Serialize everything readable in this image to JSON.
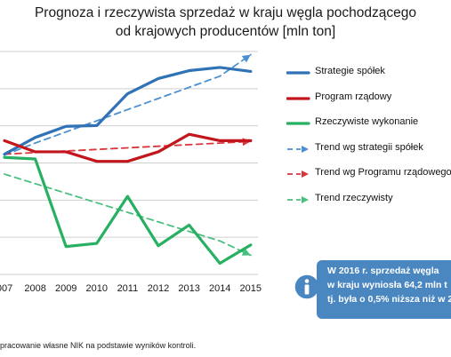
{
  "title_lines": [
    "Prognoza i rzeczywista sprzedaż w kraju węgla pochodzącego",
    "od krajowych producentów [mln ton]"
  ],
  "source_text": "pracowanie własne NIK na podstawie wyników kontroli.",
  "note": {
    "lines": [
      "W 2016 r. sprzedaż węgla",
      "w kraju wyniosła 64,2 mln t",
      "tj. była o 0,5% niższa niż w 2"
    ],
    "icon": "info-icon",
    "color": "#4a87c1"
  },
  "chart_data": {
    "type": "line",
    "title": "Prognoza i rzeczywista sprzedaż w kraju węgla pochodzącego od krajowych producentów [mln ton]",
    "x": [
      "007",
      "2008",
      "2009",
      "2010",
      "2011",
      "2012",
      "2013",
      "2014",
      "2015"
    ],
    "ylim": [
      58,
      86
    ],
    "grid": true,
    "legend_position": "right",
    "series": [
      {
        "name": "Strategie spółek",
        "style": "solid",
        "color": "#2f72b6",
        "values": [
          73.1,
          75.2,
          76.6,
          76.7,
          80.7,
          82.6,
          83.6,
          84.0,
          83.5
        ]
      },
      {
        "name": "Program rządowy",
        "style": "solid",
        "color": "#c3161c",
        "values": [
          74.8,
          73.4,
          73.4,
          72.2,
          72.2,
          73.4,
          75.6,
          74.8,
          74.8
        ]
      },
      {
        "name": "Rzeczywiste wykonanie",
        "style": "solid",
        "color": "#27b062",
        "values": [
          72.7,
          72.5,
          61.5,
          61.9,
          67.8,
          61.6,
          64.2,
          59.4,
          61.7
        ]
      },
      {
        "name": "Trend wg strategii spółek",
        "style": "dashed",
        "color": "#4a8fd0",
        "values": [
          73.0,
          74.5,
          75.9,
          77.3,
          78.7,
          80.1,
          81.5,
          82.9,
          85.6
        ]
      },
      {
        "name": "Trend wg Programu rządowego",
        "style": "dashed",
        "color": "#d9363c",
        "values": [
          73.1,
          73.3,
          73.5,
          73.7,
          73.9,
          74.1,
          74.3,
          74.5,
          74.7
        ]
      },
      {
        "name": "Trend rzeczywisty",
        "style": "dashed",
        "color": "#49bf7f",
        "values": [
          70.6,
          69.4,
          68.2,
          67.0,
          65.8,
          64.6,
          63.4,
          62.2,
          60.4
        ]
      }
    ]
  }
}
